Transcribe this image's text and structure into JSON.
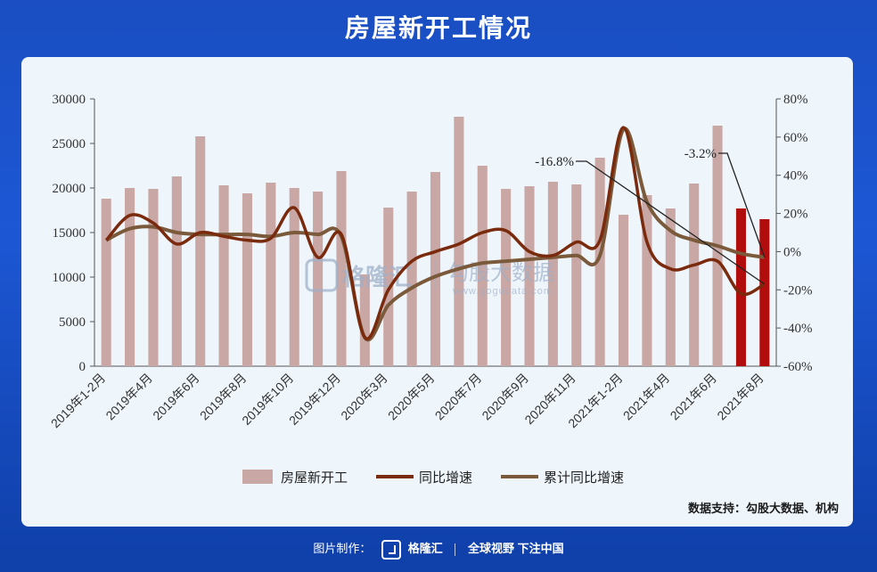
{
  "header": {
    "title": "房屋新开工情况"
  },
  "source_text": "数据支持：勾股大数据、机构",
  "watermark": {
    "brand": "格隆汇",
    "sub": "勾股大数据",
    "url": "www.gogudata.com"
  },
  "footer": {
    "made_by": "图片制作：",
    "brand": "格隆汇",
    "slogan": "全球视野 下注中国"
  },
  "colors": {
    "bar": "#c8a7a4",
    "bar_highlight": "#b10d0d",
    "line_yoy": "#7a2a0d",
    "line_cum": "#7a5a3a",
    "title_bg": "#1d57d4"
  },
  "chart_data": {
    "type": "bar",
    "categories": [
      "2019年1-2月",
      "2019年3月",
      "2019年4月",
      "2019年5月",
      "2019年6月",
      "2019年7月",
      "2019年8月",
      "2019年9月",
      "2019年10月",
      "2019年11月",
      "2019年12月",
      "2020年1-2月",
      "2020年3月",
      "2020年4月",
      "2020年5月",
      "2020年6月",
      "2020年7月",
      "2020年8月",
      "2020年9月",
      "2020年10月",
      "2020年11月",
      "2020年12月",
      "2021年1-2月",
      "2021年3月",
      "2021年4月",
      "2021年5月",
      "2021年6月",
      "2021年7月",
      "2021年8月"
    ],
    "x_tick_labels": [
      "2019年1-2月",
      "2019年4月",
      "2019年6月",
      "2019年8月",
      "2019年10月",
      "2019年12月",
      "2020年3月",
      "2020年5月",
      "2020年7月",
      "2020年9月",
      "2020年11月",
      "2021年1-2月",
      "2021年4月",
      "2021年6月",
      "2021年8月"
    ],
    "x_tick_indices": [
      0,
      2,
      4,
      6,
      8,
      10,
      12,
      14,
      16,
      18,
      20,
      22,
      24,
      26,
      28
    ],
    "series": [
      {
        "name": "房屋新开工",
        "kind": "bar",
        "axis": "left",
        "values": [
          18800,
          20000,
          19900,
          21300,
          25800,
          20300,
          19400,
          20600,
          20000,
          19600,
          21900,
          10300,
          17800,
          19600,
          21800,
          28000,
          22500,
          19900,
          20200,
          20700,
          20400,
          23400,
          17000,
          19200,
          17700,
          20500,
          27000,
          17700,
          16500
        ],
        "highlight_indices": [
          27,
          28
        ]
      },
      {
        "name": "同比增速",
        "kind": "line",
        "axis": "right",
        "values": [
          6,
          19,
          15,
          4,
          10,
          8,
          6,
          7,
          23,
          -3,
          9,
          -45,
          -20,
          -5,
          0,
          4,
          10,
          11,
          0,
          -2,
          5,
          6,
          65,
          5,
          -9,
          -7,
          -5,
          -22,
          -17
        ]
      },
      {
        "name": "累计同比增速",
        "kind": "line",
        "axis": "right",
        "values": [
          6,
          12,
          13,
          10,
          9,
          9,
          9,
          8,
          10,
          9,
          8,
          -45,
          -28,
          -19,
          -13,
          -9,
          -6,
          -5,
          -4,
          -3,
          -2,
          -2,
          64,
          26,
          11,
          6,
          3,
          -1,
          -3
        ]
      }
    ],
    "left_axis": {
      "ylim": [
        0,
        30000
      ],
      "ticks": [
        "0",
        "5000",
        "10000",
        "15000",
        "20000",
        "25000",
        "30000"
      ]
    },
    "right_axis": {
      "ylim": [
        -60,
        80
      ],
      "ticks": [
        "-60%",
        "-40%",
        "-20%",
        "0%",
        "20%",
        "40%",
        "60%",
        "80%"
      ]
    },
    "annotations": [
      {
        "text": "-16.8%",
        "target_index": 28,
        "target_series": "同比增速"
      },
      {
        "text": "-3.2%",
        "target_index": 28,
        "target_series": "累计同比增速"
      }
    ],
    "legend_position": "bottom"
  }
}
